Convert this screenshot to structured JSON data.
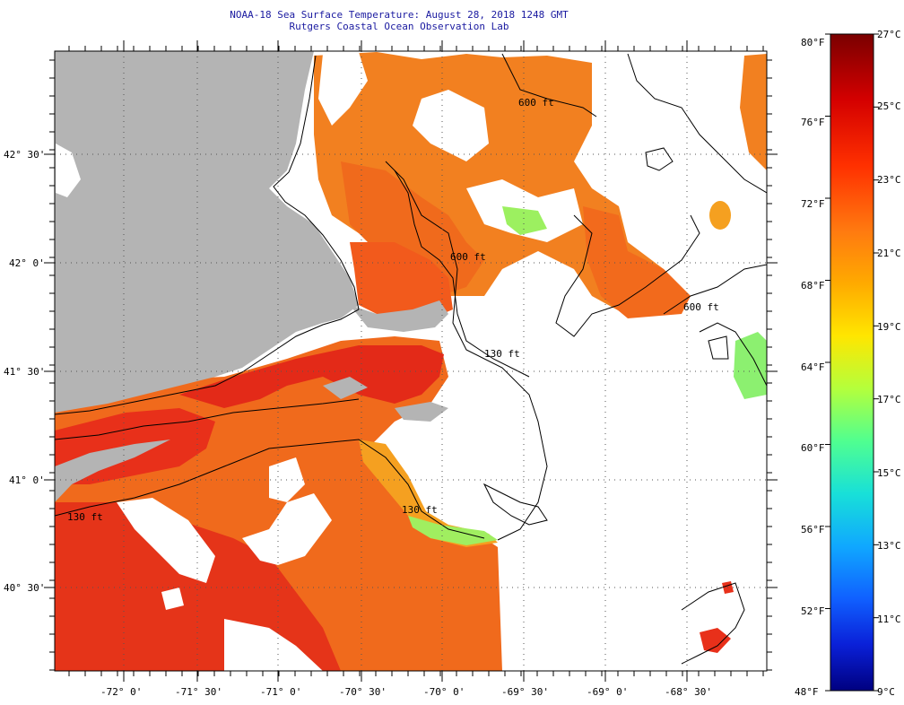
{
  "title_line1": "NOAA-18 Sea Surface Temperature:  August 28, 2018 1248 GMT",
  "title_line2": "Rutgers Coastal Ocean Observation Lab",
  "lat_labels": [
    "42° 30'",
    "42° 0'",
    "41° 30'",
    "41° 0'",
    "40° 30'"
  ],
  "lon_labels": [
    "-72° 0'",
    "-71° 30'",
    "-71° 0'",
    "-70° 30'",
    "-70° 0'",
    "-69° 30'",
    "-69° 0'",
    "-68° 30'"
  ],
  "isobath_labels": [
    "600 ft",
    "600 ft",
    "130 ft",
    "600 ft",
    "130 ft",
    "130 ft"
  ],
  "colorbar": {
    "fahrenheit": [
      "80°F",
      "76°F",
      "72°F",
      "68°F",
      "64°F",
      "60°F",
      "56°F",
      "52°F",
      "48°F"
    ],
    "celsius": [
      "27°C",
      "25°C",
      "23°C",
      "21°C",
      "19°C",
      "17°C",
      "15°C",
      "13°C",
      "11°C",
      "9°C"
    ],
    "colors": [
      "#7a0000",
      "#c80000",
      "#ff2a00",
      "#ff7a1a",
      "#ffb000",
      "#ffe600",
      "#c8ff30",
      "#60ff80",
      "#20e6c8",
      "#10b4ff",
      "#1060ff",
      "#0a20e0",
      "#000090"
    ]
  },
  "colors": {
    "land": "#b4b4b4",
    "no_data": "#ffffff",
    "warm": "#f26a1b",
    "hot": "#e8251a",
    "orange": "#f08a22"
  }
}
